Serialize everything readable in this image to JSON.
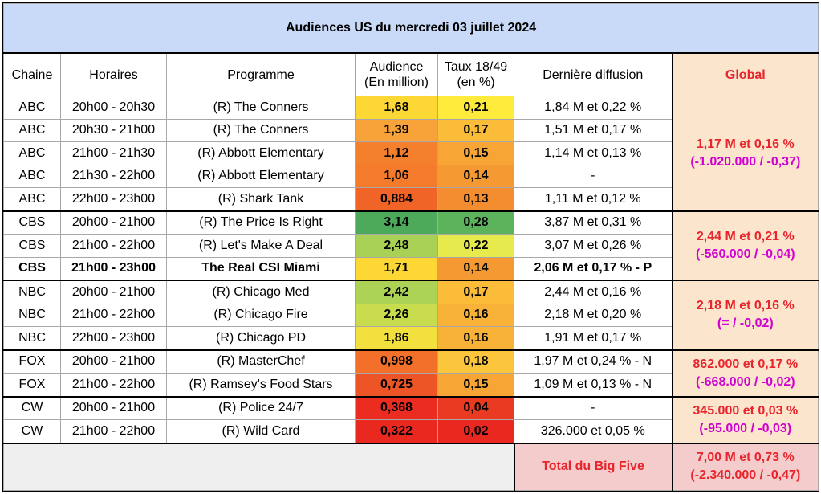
{
  "title": "Audiences US du mercredi 03 juillet 2024",
  "headers": {
    "chaine": "Chaine",
    "horaires": "Horaires",
    "programme": "Programme",
    "audience_1": "Audience",
    "audience_2": "(En million)",
    "taux_1": "Taux 18/49",
    "taux_2": "(en %)",
    "derniere": "Dernière diffusion",
    "global": "Global"
  },
  "rows": [
    {
      "chaine": "ABC",
      "horaires": "20h00 - 20h30",
      "programme": "(R) The Conners",
      "audience": "1,68",
      "taux": "0,21",
      "derniere": "1,84 M et 0,22 %",
      "aud_color": "#fdd835",
      "taux_color": "#ffeb3b"
    },
    {
      "chaine": "ABC",
      "horaires": "20h30 - 21h00",
      "programme": "(R) The Conners",
      "audience": "1,39",
      "taux": "0,17",
      "derniere": "1,51 M et 0,17 %",
      "aud_color": "#f8a33a",
      "taux_color": "#fbbc3a"
    },
    {
      "chaine": "ABC",
      "horaires": "21h00 - 21h30",
      "programme": "(R) Abbott Elementary",
      "audience": "1,12",
      "taux": "0,15",
      "derniere": "1,14 M et 0,13 %",
      "aud_color": "#f47f2c",
      "taux_color": "#f7a635"
    },
    {
      "chaine": "ABC",
      "horaires": "21h30 - 22h00",
      "programme": "(R) Abbott Elementary",
      "audience": "1,06",
      "taux": "0,14",
      "derniere": "-",
      "aud_color": "#f47b2b",
      "taux_color": "#f59a33"
    },
    {
      "chaine": "ABC",
      "horaires": "22h00 - 23h00",
      "programme": "(R) Shark Tank",
      "audience": "0,884",
      "taux": "0,13",
      "derniere": "1,11 M et 0,12 %",
      "aud_color": "#f06428",
      "taux_color": "#f48d30"
    },
    {
      "chaine": "CBS",
      "horaires": "20h00 - 21h00",
      "programme": "(R) The Price Is Right",
      "audience": "3,14",
      "taux": "0,28",
      "derniere": "3,87 M et 0,31 %",
      "aud_color": "#4caa5a",
      "taux_color": "#5cb35c"
    },
    {
      "chaine": "CBS",
      "horaires": "21h00 - 22h00",
      "programme": "(R) Let's Make A Deal",
      "audience": "2,48",
      "taux": "0,22",
      "derniere": "3,07 M et 0,26 %",
      "aud_color": "#a8d155",
      "taux_color": "#e6ea4c"
    },
    {
      "chaine": "CBS",
      "horaires": "21h00 - 23h00",
      "programme": "The Real CSI Miami",
      "audience": "1,71",
      "taux": "0,14",
      "derniere": "2,06 M et 0,17 % - P",
      "aud_color": "#fdd835",
      "taux_color": "#f59a33",
      "bold": true
    },
    {
      "chaine": "NBC",
      "horaires": "20h00 - 21h00",
      "programme": "(R) Chicago Med",
      "audience": "2,42",
      "taux": "0,17",
      "derniere": "2,44 M et 0,16 %",
      "aud_color": "#add356",
      "taux_color": "#fbbc3a"
    },
    {
      "chaine": "NBC",
      "horaires": "21h00 - 22h00",
      "programme": "(R) Chicago Fire",
      "audience": "2,26",
      "taux": "0,16",
      "derniere": "2,18 M et 0,20 %",
      "aud_color": "#c9dc4d",
      "taux_color": "#f9b238"
    },
    {
      "chaine": "NBC",
      "horaires": "22h00 - 23h00",
      "programme": "(R) Chicago PD",
      "audience": "1,86",
      "taux": "0,16",
      "derniere": "1,91 M et 0,17 %",
      "aud_color": "#f2e03e",
      "taux_color": "#f9b238"
    },
    {
      "chaine": "FOX",
      "horaires": "20h00 - 21h00",
      "programme": "(R) MasterChef",
      "audience": "0,998",
      "taux": "0,18",
      "derniere": "1,97 M et 0,24 % - N",
      "aud_color": "#f2702a",
      "taux_color": "#fcc63c"
    },
    {
      "chaine": "FOX",
      "horaires": "21h00 - 22h00",
      "programme": "(R) Ramsey's Food Stars",
      "audience": "0,725",
      "taux": "0,15",
      "derniere": "1,09 M et 0,13 % - N",
      "aud_color": "#ee5526",
      "taux_color": "#f7a635"
    },
    {
      "chaine": "CW",
      "horaires": "20h00 - 21h00",
      "programme": "(R) Police 24/7",
      "audience": "0,368",
      "taux": "0,04",
      "derniere": "-",
      "aud_color": "#ea2d20",
      "taux_color": "#ea3a22"
    },
    {
      "chaine": "CW",
      "horaires": "21h00 - 22h00",
      "programme": "(R) Wild Card",
      "audience": "0,322",
      "taux": "0,02",
      "derniere": "326.000 et 0,05 %",
      "aud_color": "#e9281f",
      "taux_color": "#e9281f"
    }
  ],
  "globals": {
    "abc": {
      "main": "1,17 M et 0,16 %",
      "delta": "(-1.020.000 / -0,37)"
    },
    "cbs": {
      "main": "2,44 M et 0,21 %",
      "delta": "(-560.000 / -0,04)"
    },
    "nbc": {
      "main": "2,18 M et 0,16 %",
      "delta": "(= / -0,02)"
    },
    "fox": {
      "main": "862.000 et 0,17 %",
      "delta": "(-668.000 / -0,02)"
    },
    "cw": {
      "main": "345.000 et 0,03 %",
      "delta": "(-95.000 / -0,03)"
    }
  },
  "footer": {
    "label": "Total du Big Five",
    "main": "7,00 M et 0,73 %",
    "delta": "(-2.340.000 / -0,47)"
  }
}
